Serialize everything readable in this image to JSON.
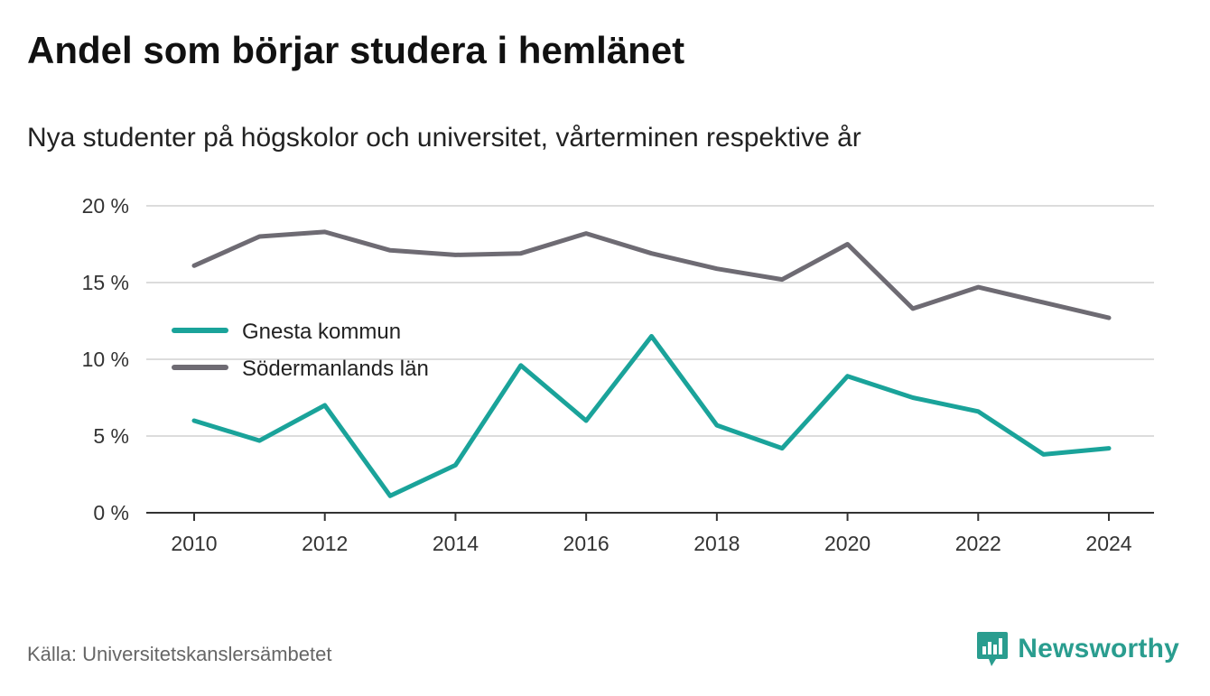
{
  "title": "Andel som börjar studera i hemlänet",
  "subtitle": "Nya studenter på högskolor och universitet, vårterminen respektive år",
  "source": "Källa: Universitetskanslersämbetet",
  "brand": {
    "name": "Newsworthy",
    "icon": "newsworthy-logo-icon",
    "color": "#2a9d8f"
  },
  "chart_data": {
    "type": "line",
    "title": "Andel som börjar studera i hemlänet",
    "subtitle": "Nya studenter på högskolor och universitet, vårterminen respektive år",
    "x": [
      2010,
      2011,
      2012,
      2013,
      2014,
      2015,
      2016,
      2017,
      2018,
      2019,
      2020,
      2021,
      2022,
      2023,
      2024
    ],
    "x_ticks": [
      "2010",
      "2012",
      "2014",
      "2016",
      "2018",
      "2020",
      "2022",
      "2024"
    ],
    "y_ticks": [
      "0 %",
      "5 %",
      "10 %",
      "15 %",
      "20 %"
    ],
    "ylim": [
      0,
      20
    ],
    "grid": true,
    "legend_position": "left-middle",
    "series": [
      {
        "name": "Gnesta kommun",
        "color": "#1aa39a",
        "values": [
          6.0,
          4.7,
          7.0,
          1.1,
          3.1,
          9.6,
          6.0,
          11.5,
          5.7,
          4.2,
          8.9,
          7.5,
          6.6,
          3.8,
          4.2
        ]
      },
      {
        "name": "Södermanlands län",
        "color": "#6e6b73",
        "values": [
          16.1,
          18.0,
          18.3,
          17.1,
          16.8,
          16.9,
          18.2,
          16.9,
          15.9,
          15.2,
          17.5,
          13.3,
          14.7,
          13.7,
          12.7
        ]
      }
    ]
  }
}
